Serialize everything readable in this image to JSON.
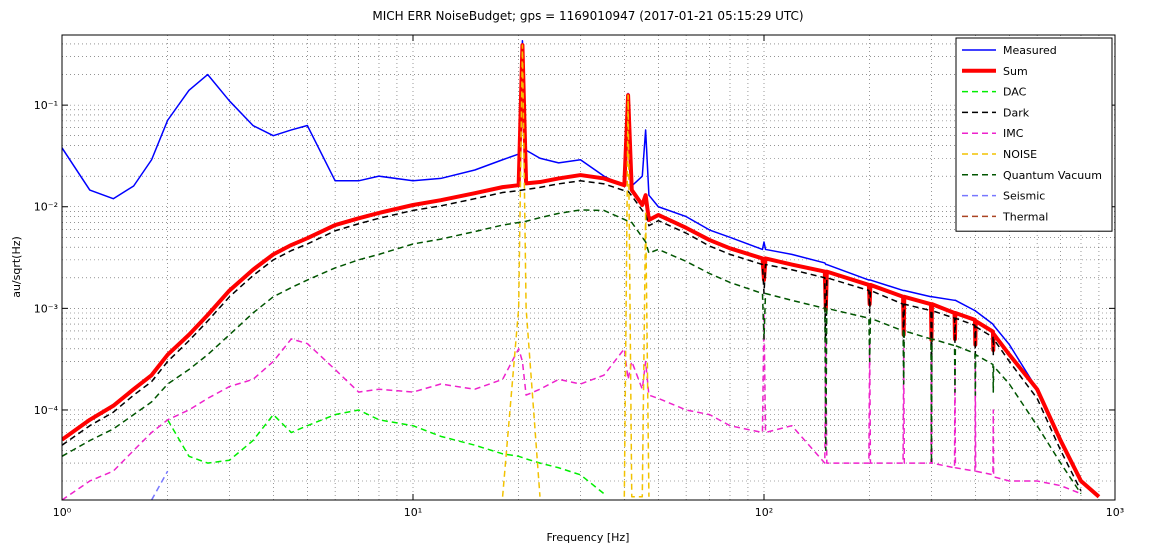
{
  "chart_data": {
    "type": "line",
    "title": "MICH ERR NoiseBudget; gps = 1169010947 (2017-01-21 05:15:29 UTC)",
    "xlabel": "Frequency [Hz]",
    "ylabel": "au/sqrt(Hz)",
    "xscale": "log",
    "yscale": "log",
    "grid": true,
    "legend": "upper right",
    "xlim": [
      1,
      1000
    ],
    "ylim": [
      1.3e-05,
      0.49
    ],
    "xticks": [
      {
        "value": 1,
        "label": "10⁰"
      },
      {
        "value": 10,
        "label": "10¹"
      },
      {
        "value": 100,
        "label": "10²"
      },
      {
        "value": 1000,
        "label": "10³"
      }
    ],
    "yticks": [
      {
        "value": 0.0001,
        "label": "10⁻⁴"
      },
      {
        "value": 0.001,
        "label": "10⁻³"
      },
      {
        "value": 0.01,
        "label": "10⁻²"
      },
      {
        "value": 0.1,
        "label": "10⁻¹"
      }
    ],
    "x": [
      1,
      1.2,
      1.4,
      1.6,
      1.8,
      2,
      2.3,
      2.6,
      3,
      3.5,
      4,
      4.5,
      5,
      6,
      7,
      8,
      10,
      12,
      15,
      18,
      20,
      20.5,
      21,
      23,
      26,
      30,
      35,
      40,
      41,
      42,
      45,
      46,
      47,
      50,
      60,
      70,
      80,
      99,
      100,
      101,
      120,
      149,
      150,
      151,
      199,
      200,
      201,
      249,
      250,
      251,
      299,
      300,
      301,
      349,
      350,
      351,
      399,
      400,
      401,
      449,
      450,
      451,
      500,
      600,
      700,
      800,
      900,
      1000
    ],
    "series": [
      {
        "name": "Measured",
        "color": "#0000ff",
        "width": 1.5,
        "dash": false,
        "values": [
          0.038,
          0.0146,
          0.012,
          0.016,
          0.029,
          0.071,
          0.14,
          0.2,
          0.11,
          0.063,
          0.05,
          0.057,
          0.063,
          0.018,
          0.018,
          0.02,
          0.018,
          0.019,
          0.023,
          0.029,
          0.033,
          0.43,
          0.036,
          0.03,
          0.027,
          0.029,
          0.02,
          0.016,
          0.13,
          0.016,
          0.02,
          0.057,
          0.013,
          0.01,
          0.008,
          0.0059,
          0.005,
          0.0038,
          0.0045,
          0.0038,
          0.0034,
          0.0028,
          0.0027,
          0.0027,
          0.0019,
          0.0019,
          0.0019,
          0.0015,
          0.0015,
          0.0015,
          0.0013,
          0.0013,
          0.0013,
          0.0012,
          0.0012,
          0.0012,
          0.00095,
          0.00095,
          0.00094,
          0.0007,
          0.00069,
          0.00068,
          0.00044,
          0.00016,
          5e-05,
          2e-05,
          null,
          null
        ]
      },
      {
        "name": "Sum",
        "color": "#ff0000",
        "width": 4,
        "dash": false,
        "values": [
          5.1e-05,
          8e-05,
          0.00011,
          0.00016,
          0.00022,
          0.00035,
          0.00055,
          0.00086,
          0.0015,
          0.0024,
          0.0034,
          0.0042,
          0.0049,
          0.0066,
          0.0077,
          0.0087,
          0.0104,
          0.0116,
          0.0136,
          0.0156,
          0.0163,
          0.39,
          0.017,
          0.0175,
          0.019,
          0.0205,
          0.019,
          0.0163,
          0.125,
          0.0146,
          0.0104,
          0.013,
          0.0074,
          0.0083,
          0.0062,
          0.0047,
          0.0039,
          0.0031,
          0.0019,
          0.0031,
          0.0027,
          0.0023,
          0.00097,
          0.0023,
          0.0017,
          0.0011,
          0.0017,
          0.0013,
          0.00055,
          0.0013,
          0.0011,
          0.00049,
          0.0011,
          0.0009,
          0.0005,
          0.0009,
          0.00077,
          0.00044,
          0.00075,
          0.00059,
          0.00039,
          0.00056,
          0.00035,
          0.00016,
          5e-05,
          2e-05,
          1.4e-05,
          null
        ]
      },
      {
        "name": "DAC",
        "color": "#00ee00",
        "width": 1.5,
        "dash": true,
        "values": [
          null,
          null,
          null,
          null,
          null,
          8e-05,
          3.5e-05,
          3e-05,
          3.2e-05,
          5e-05,
          9e-05,
          6e-05,
          7e-05,
          9e-05,
          0.0001,
          8e-05,
          7e-05,
          5.5e-05,
          4.5e-05,
          3.7e-05,
          3.5e-05,
          3.4e-05,
          3.3e-05,
          3e-05,
          2.7e-05,
          2.3e-05,
          1.5e-05,
          null,
          null,
          null,
          null,
          null,
          null,
          null,
          null,
          null,
          null,
          null,
          null,
          null,
          null,
          null,
          null,
          null,
          null,
          null,
          null,
          null,
          null,
          null,
          null,
          null,
          null,
          null,
          null,
          null,
          null,
          null,
          null,
          null,
          null,
          null,
          null,
          null,
          null,
          null,
          null,
          null
        ]
      },
      {
        "name": "Dark",
        "color": "#000000",
        "width": 1.5,
        "dash": true,
        "values": [
          4.5e-05,
          7e-05,
          9.5e-05,
          0.00014,
          0.00019,
          0.0003,
          0.00048,
          0.00075,
          0.0013,
          0.0021,
          0.003,
          0.0037,
          0.0043,
          0.0058,
          0.0068,
          0.0077,
          0.0092,
          0.0102,
          0.012,
          0.0138,
          0.0144,
          0.0146,
          0.0148,
          0.0155,
          0.0168,
          0.018,
          0.0168,
          0.0144,
          0.0142,
          0.0128,
          0.0092,
          0.0085,
          0.0065,
          0.0073,
          0.0055,
          0.0041,
          0.0034,
          0.0027,
          0.0014,
          0.0027,
          0.0024,
          0.002,
          0.00025,
          0.002,
          0.0015,
          0.0009,
          0.0015,
          0.0011,
          0.00045,
          0.0011,
          0.00095,
          0.0001,
          0.00095,
          0.0008,
          0.00045,
          0.0008,
          0.00068,
          0.00035,
          0.00066,
          0.00052,
          0.00034,
          0.0005,
          0.0003,
          0.00013,
          4e-05,
          1.6e-05,
          null,
          null
        ]
      },
      {
        "name": "IMC",
        "color": "#ee22cc",
        "width": 1.5,
        "dash": true,
        "values": [
          1.3e-05,
          2e-05,
          2.5e-05,
          4e-05,
          6e-05,
          8e-05,
          0.0001,
          0.00013,
          0.00017,
          0.0002,
          0.0003,
          0.0005,
          0.00045,
          0.00025,
          0.00015,
          0.00016,
          0.00015,
          0.00018,
          0.00016,
          0.0002,
          0.0004,
          0.0003,
          0.00014,
          0.00016,
          0.0002,
          0.00018,
          0.00022,
          0.0004,
          0.0002,
          0.0003,
          0.00016,
          0.0003,
          0.00014,
          0.00013,
          0.0001,
          9e-05,
          7e-05,
          6e-05,
          0.0009,
          6e-05,
          7e-05,
          3e-05,
          0.0005,
          3e-05,
          3e-05,
          0.0005,
          3e-05,
          3e-05,
          0.0004,
          3e-05,
          3e-05,
          0.0003,
          3e-05,
          2.7e-05,
          0.0003,
          2.7e-05,
          2.5e-05,
          0.0003,
          2.5e-05,
          2.3e-05,
          0.0001,
          2.2e-05,
          2e-05,
          2e-05,
          1.8e-05,
          1.5e-05,
          null,
          null
        ]
      },
      {
        "name": "NOISE",
        "color": "#f2c200",
        "width": 1.5,
        "dash": true,
        "values": [
          null,
          null,
          null,
          null,
          null,
          null,
          null,
          null,
          null,
          null,
          null,
          null,
          null,
          null,
          null,
          null,
          null,
          null,
          null,
          1.4e-05,
          0.001,
          0.39,
          0.001,
          1.4e-05,
          null,
          null,
          null,
          1.4e-05,
          0.125,
          1.4e-05,
          1.4e-05,
          0.009,
          1.4e-05,
          null,
          null,
          null,
          null,
          null,
          null,
          null,
          null,
          null,
          null,
          null,
          null,
          null,
          null,
          null,
          null,
          null,
          null,
          null,
          null,
          null,
          null,
          null,
          null,
          null,
          null,
          null,
          null,
          null,
          null,
          null,
          null,
          null,
          null,
          null
        ]
      },
      {
        "name": "Quantum Vacuum",
        "color": "#005500",
        "width": 1.5,
        "dash": true,
        "values": [
          3.5e-05,
          5e-05,
          6.5e-05,
          9e-05,
          0.00012,
          0.00018,
          0.00025,
          0.00035,
          0.00055,
          0.0009,
          0.0013,
          0.0016,
          0.0019,
          0.0025,
          0.003,
          0.0034,
          0.0043,
          0.0048,
          0.0057,
          0.0066,
          0.007,
          0.0071,
          0.0072,
          0.0078,
          0.0086,
          0.0093,
          0.0092,
          0.0075,
          0.0072,
          0.007,
          0.005,
          0.0045,
          0.0035,
          0.0038,
          0.0029,
          0.0022,
          0.0018,
          0.0014,
          0.0005,
          0.0014,
          0.0012,
          0.001,
          4e-05,
          0.001,
          0.0008,
          0.0003,
          0.0008,
          0.0006,
          0.00018,
          0.0006,
          0.0005,
          3e-05,
          0.0005,
          0.00043,
          0.00015,
          0.00043,
          0.00036,
          0.00014,
          0.00035,
          0.00028,
          0.00015,
          0.00027,
          0.00018,
          7e-05,
          3e-05,
          1.5e-05,
          null,
          null
        ]
      },
      {
        "name": "Seismic",
        "color": "#7777ff",
        "width": 1.5,
        "dash": true,
        "values": [
          null,
          null,
          null,
          null,
          1.3e-05,
          2.5e-05,
          null,
          null,
          null,
          null,
          null,
          null,
          null,
          null,
          null,
          null,
          null,
          null,
          null,
          null,
          null,
          null,
          null,
          null,
          null,
          null,
          null,
          null,
          null,
          null,
          null,
          null,
          null,
          null,
          null,
          null,
          null,
          null,
          null,
          null,
          null,
          null,
          null,
          null,
          null,
          null,
          null,
          null,
          null,
          null,
          null,
          null,
          null,
          null,
          null,
          null,
          null,
          null,
          null,
          null,
          null,
          null,
          null,
          null,
          null,
          null,
          null,
          null
        ]
      },
      {
        "name": "Thermal",
        "color": "#aa4422",
        "width": 1.5,
        "dash": true,
        "values": [
          null,
          null,
          null,
          null,
          null,
          null,
          null,
          null,
          null,
          null,
          null,
          null,
          null,
          null,
          null,
          null,
          null,
          null,
          null,
          null,
          null,
          null,
          null,
          null,
          null,
          null,
          null,
          null,
          null,
          null,
          null,
          null,
          null,
          null,
          null,
          null,
          null,
          null,
          null,
          null,
          null,
          null,
          null,
          null,
          null,
          null,
          null,
          null,
          null,
          null,
          null,
          null,
          null,
          null,
          null,
          null,
          null,
          null,
          null,
          null,
          null,
          null,
          null,
          null,
          null,
          null,
          null,
          null
        ]
      }
    ]
  }
}
